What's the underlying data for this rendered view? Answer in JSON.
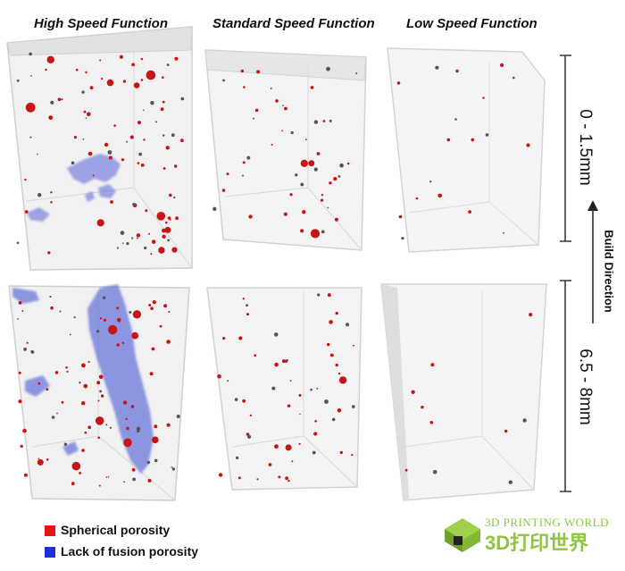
{
  "columns": {
    "high": "High Speed Function",
    "standard": "Standard Speed Function",
    "low": "Low Speed Function"
  },
  "rows": {
    "top": "0 - 1.5mm",
    "bottom": "6.5 - 8mm"
  },
  "axis": {
    "build_direction": "Build Direction"
  },
  "legend": {
    "spherical": "Spherical porosity",
    "lack_of_fusion": "Lack of fusion porosity"
  },
  "watermark": {
    "top": "3D PRINTING WORLD",
    "bottom": "3D打印世界"
  },
  "colors": {
    "spherical": "#c81414",
    "lack_of_fusion": "#2f3fd6",
    "watermark": "#8fc640"
  }
}
